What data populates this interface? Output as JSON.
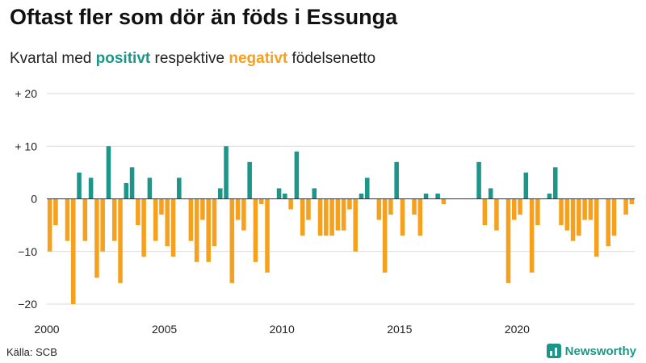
{
  "header": {
    "title": "Oftast fler som dör än föds i Essunga",
    "subtitle_pre": "Kvartal med ",
    "subtitle_positive": "positivt",
    "subtitle_mid": " respektive ",
    "subtitle_negative": "negativt",
    "subtitle_post": " födelsenetto"
  },
  "footer": {
    "source": "Källa: SCB",
    "brand": "Newsworthy"
  },
  "colors": {
    "positive": "#1b9688",
    "negative": "#f5a11e",
    "grid": "#d9d9d9",
    "zero_line": "#333333"
  },
  "chart_data": {
    "type": "bar",
    "title": "Oftast fler som dör än föds i Essunga",
    "xlabel": "",
    "ylabel": "",
    "ylim": [
      -20,
      20
    ],
    "y_ticks": [
      20,
      10,
      0,
      -10,
      -20
    ],
    "y_tick_labels": [
      "+ 20",
      "+ 10",
      "0",
      "−10",
      "−20"
    ],
    "x_ticks": [
      2000,
      2005,
      2010,
      2015,
      2020
    ],
    "x_tick_labels": [
      "2000",
      "2005",
      "2010",
      "2015",
      "2020"
    ],
    "x_start": 2000,
    "quarters_per_year": 4,
    "grid": true,
    "values": [
      -10,
      -5,
      0,
      -8,
      -20,
      5,
      -8,
      4,
      -15,
      -10,
      10,
      -8,
      -16,
      3,
      6,
      -5,
      -11,
      4,
      -8,
      -3,
      -9,
      -11,
      4,
      0,
      -8,
      -12,
      -4,
      -12,
      -9,
      2,
      10,
      -16,
      -4,
      -6,
      7,
      -12,
      -1,
      -14,
      0,
      2,
      1,
      -2,
      9,
      -7,
      -4,
      2,
      -7,
      -7,
      -7,
      -6,
      -6,
      -2,
      -10,
      1,
      4,
      0,
      -4,
      -14,
      -3,
      7,
      -7,
      0,
      -3,
      -7,
      1,
      0,
      1,
      -1,
      0,
      0,
      0,
      0,
      0,
      7,
      -5,
      2,
      -6,
      0,
      -16,
      -4,
      -3,
      5,
      -14,
      -5,
      0,
      1,
      6,
      -5,
      -6,
      -8,
      -7,
      -4,
      -4,
      -11,
      0,
      -9,
      -7,
      0,
      -3,
      -1
    ]
  }
}
